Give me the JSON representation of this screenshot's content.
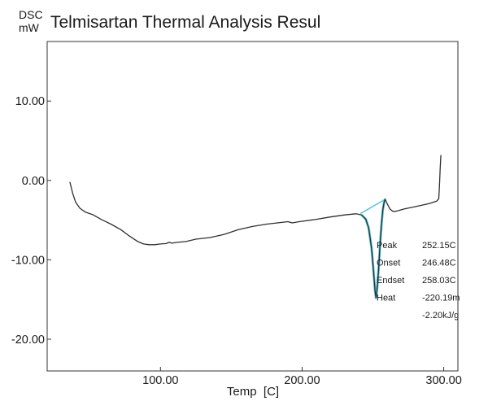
{
  "chart_data": {
    "type": "line",
    "title": "Telmisartan Thermal Analysis Resul",
    "ylabel_line1": "DSC",
    "ylabel_line2": "mW",
    "xlabel": "Temp  [C]",
    "xlim": [
      20,
      310
    ],
    "ylim": [
      -24,
      17.5
    ],
    "x_ticks": [
      {
        "value": 100,
        "label": "100.00"
      },
      {
        "value": 200,
        "label": "200.00"
      },
      {
        "value": 300,
        "label": "300.00"
      }
    ],
    "y_ticks": [
      {
        "value": 10,
        "label": "10.00"
      },
      {
        "value": 0,
        "label": "0.00"
      },
      {
        "value": -10,
        "label": "-10.00"
      },
      {
        "value": -20,
        "label": "-20.00"
      }
    ],
    "grid": false,
    "colors": {
      "curve": "#2f2f2f",
      "analysis": "#5bc8dc",
      "axes": "#333333"
    },
    "series": [
      {
        "x": [
          36,
          38,
          40,
          43,
          47,
          52,
          58,
          65,
          72,
          78,
          84,
          88,
          92,
          96,
          100,
          104,
          106,
          108,
          112,
          118,
          125,
          135,
          145,
          155,
          165,
          175,
          185,
          190,
          193,
          198,
          210,
          220,
          230,
          238,
          242,
          245,
          247,
          249,
          250,
          251,
          251.5,
          252.15,
          253,
          254,
          255,
          256,
          257,
          258,
          258.5,
          259,
          260,
          262,
          264,
          266,
          268,
          272,
          280,
          290,
          295,
          296.5,
          297,
          297.5,
          298
        ],
        "y": [
          -0.2,
          -1.6,
          -2.7,
          -3.5,
          -4.0,
          -4.3,
          -4.9,
          -5.5,
          -6.2,
          -7.0,
          -7.7,
          -8.0,
          -8.1,
          -8.1,
          -8.0,
          -7.95,
          -7.8,
          -7.9,
          -7.8,
          -7.7,
          -7.4,
          -7.2,
          -6.8,
          -6.2,
          -5.8,
          -5.5,
          -5.3,
          -5.2,
          -5.35,
          -5.2,
          -4.9,
          -4.6,
          -4.35,
          -4.2,
          -4.35,
          -4.9,
          -6.0,
          -8.5,
          -10.5,
          -12.8,
          -13.9,
          -14.8,
          -13.6,
          -11.2,
          -8.2,
          -5.6,
          -3.7,
          -2.7,
          -2.4,
          -2.5,
          -2.9,
          -3.6,
          -3.9,
          -3.9,
          -3.8,
          -3.6,
          -3.3,
          -2.9,
          -2.6,
          -2.3,
          -0.5,
          1.5,
          3.2
        ]
      },
      {
        "x": [
          241,
          258.5
        ],
        "y": [
          -4.2,
          -2.4
        ]
      }
    ],
    "annotations": [
      {
        "label": "Peak",
        "value": "252.15C"
      },
      {
        "label": "Onset",
        "value": "246.48C"
      },
      {
        "label": "Endset",
        "value": "258.03C"
      },
      {
        "label": "Heat",
        "value": "-220.19m"
      },
      {
        "label": "",
        "value": "-2.20kJ/g"
      }
    ]
  }
}
